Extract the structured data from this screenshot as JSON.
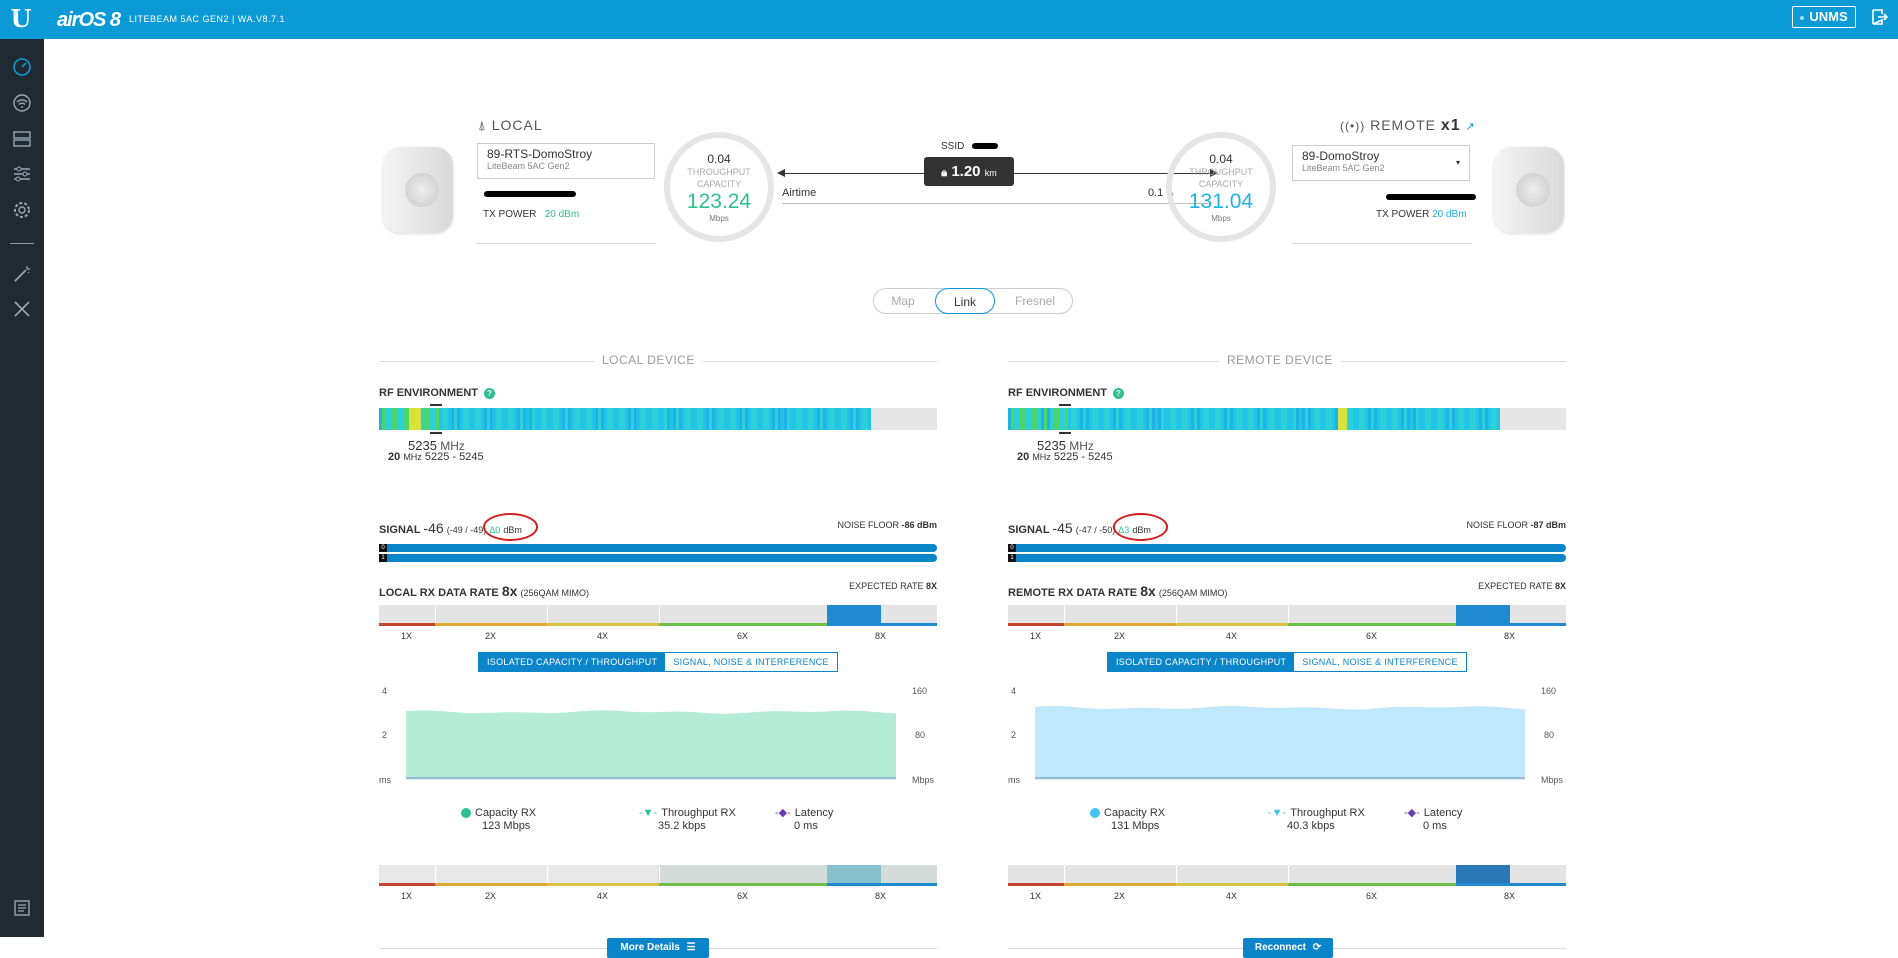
{
  "header": {
    "logo": "U",
    "brand": "airOS 8",
    "device_title": "LITEBEAM 5AC GEN2 | WA.V8.7.1",
    "unms_label": "UNMS"
  },
  "sidebar": {
    "icons": [
      "dashboard-icon",
      "wireless-icon",
      "network-icon",
      "services-icon",
      "system-icon",
      "tools-wand-icon",
      "tools-icon",
      "log-icon"
    ]
  },
  "link": {
    "local": {
      "label": "LOCAL",
      "device_name": "89-RTS-DomoStroy",
      "device_model": "LiteBeam 5AC Gen2",
      "tx_power_label": "TX POWER",
      "tx_power_value": "20 dBm",
      "throughput_top": "0.04",
      "capacity_label_1": "THROUGHPUT",
      "capacity_label_2": "CAPACITY",
      "capacity_value": "123.24",
      "capacity_unit": "Mbps"
    },
    "remote": {
      "label": "REMOTE",
      "count": "x1",
      "device_name": "89-DomoStroy",
      "device_model": "LiteBeam 5AC Gen2",
      "tx_power_label": "TX POWER",
      "tx_power_value": "20 dBm",
      "throughput_top": "0.04",
      "capacity_label_1": "THROUGHPUT",
      "capacity_label_2": "CAPACITY",
      "capacity_value": "131.04",
      "capacity_unit": "Mbps"
    },
    "ssid_label": "SSID",
    "distance": "1.20",
    "distance_unit": "km",
    "airtime_label": "Airtime",
    "airtime_value": "0.1",
    "airtime_unit": "%"
  },
  "view_tabs": [
    "Map",
    "Link",
    "Fresnel"
  ],
  "view_tabs_active": "Link",
  "panels": {
    "local": {
      "heading": "LOCAL DEVICE",
      "rf_label": "RF ENVIRONMENT",
      "freq": "5235",
      "freq_unit": "MHz",
      "width": "20",
      "width_unit": "MHz",
      "range": "5225 - 5245",
      "signal_label": "SIGNAL",
      "signal_value": "-46",
      "signal_detail": "(-49 / -49)",
      "signal_delta": "Δ0",
      "signal_unit": "dBm",
      "noise_label": "NOISE FLOOR",
      "noise_value": "-86 dBm",
      "chain0": "0",
      "chain1": "1",
      "rate_label": "LOCAL RX DATA RATE",
      "rate_value": "8x",
      "rate_mod": "(256QAM MIMO)",
      "expected_label": "EXPECTED RATE",
      "expected_value": "8X",
      "ticks": [
        "1X",
        "2X",
        "4X",
        "6X",
        "8X"
      ],
      "tab_on": "ISOLATED CAPACITY / THROUGHPUT",
      "tab_off": "SIGNAL, NOISE & INTERFERENCE",
      "axis_left": [
        "4",
        "2",
        "ms"
      ],
      "axis_right": [
        "160",
        "80",
        "Mbps"
      ],
      "legend": [
        {
          "name": "Capacity RX",
          "value": "123 Mbps",
          "color": "#2ebf91"
        },
        {
          "name": "Throughput RX",
          "value": "35.2 kbps",
          "color": "#2ebf91"
        },
        {
          "name": "Latency",
          "value": "0 ms",
          "color": "#6a3bb0"
        }
      ],
      "button": "More Details",
      "capacity_fraction": 0.77,
      "rate_highlight": "8X"
    },
    "remote": {
      "heading": "REMOTE DEVICE",
      "rf_label": "RF ENVIRONMENT",
      "freq": "5235",
      "freq_unit": "MHz",
      "width": "20",
      "width_unit": "MHz",
      "range": "5225 - 5245",
      "signal_label": "SIGNAL",
      "signal_value": "-45",
      "signal_detail": "(-47 / -50)",
      "signal_delta": "Δ3",
      "signal_unit": "dBm",
      "noise_label": "NOISE FLOOR",
      "noise_value": "-87 dBm",
      "chain0": "0",
      "chain1": "1",
      "rate_label": "REMOTE RX DATA RATE",
      "rate_value": "8x",
      "rate_mod": "(256QAM MIMO)",
      "expected_label": "EXPECTED RATE",
      "expected_value": "8X",
      "ticks": [
        "1X",
        "2X",
        "4X",
        "6X",
        "8X"
      ],
      "tab_on": "ISOLATED CAPACITY / THROUGHPUT",
      "tab_off": "SIGNAL, NOISE & INTERFERENCE",
      "axis_left": [
        "4",
        "2",
        "ms"
      ],
      "axis_right": [
        "160",
        "80",
        "Mbps"
      ],
      "legend": [
        {
          "name": "Capacity RX",
          "value": "131 Mbps",
          "color": "#44c4f2"
        },
        {
          "name": "Throughput RX",
          "value": "40.3 kbps",
          "color": "#44c4f2"
        },
        {
          "name": "Latency",
          "value": "0 ms",
          "color": "#6a3bb0"
        }
      ],
      "button": "Reconnect",
      "capacity_fraction": 0.82,
      "rate_highlight": "8X"
    }
  },
  "colors": {
    "accent": "#0b9ad6",
    "sidebar": "#1f2a33",
    "local_fill": "#b5ecd7",
    "remote_fill": "#bfe8fa"
  }
}
